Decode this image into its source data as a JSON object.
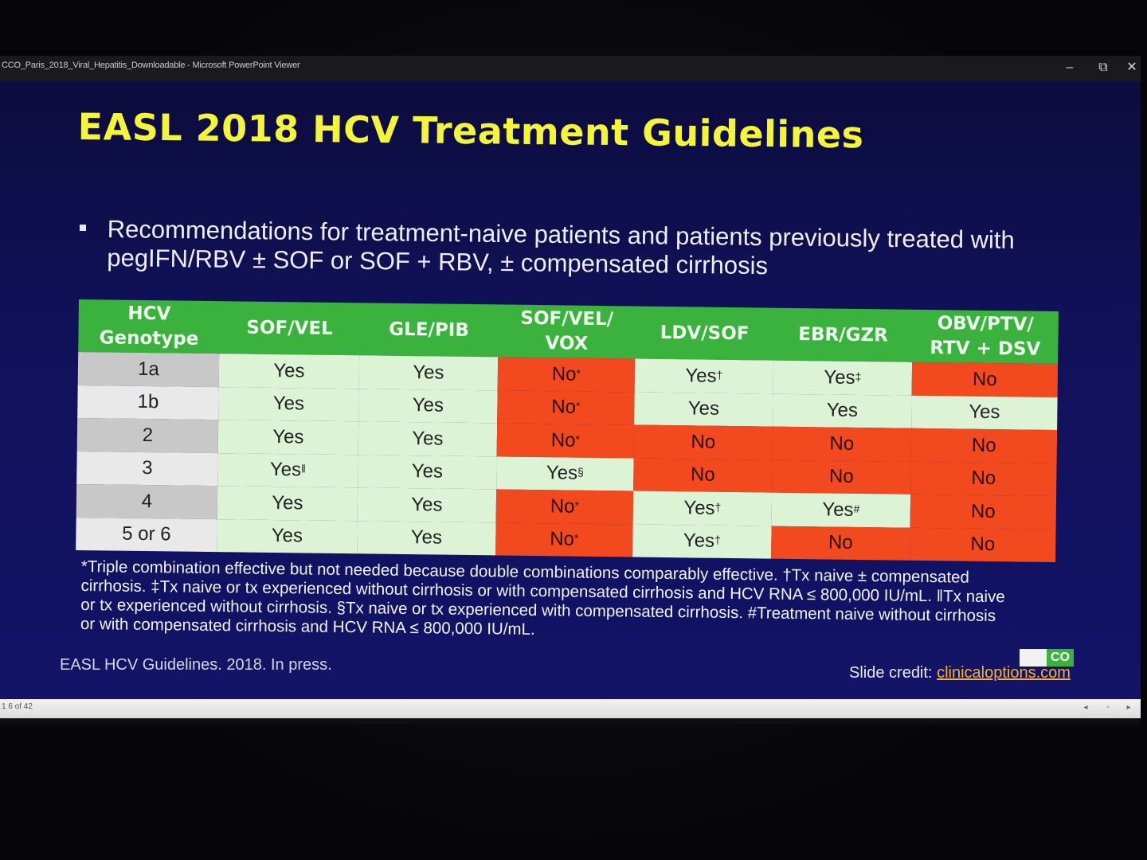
{
  "window": {
    "title": "CCO_Paris_2018_Viral_Hepatitis_Downloadable - Microsoft PowerPoint Viewer",
    "minimize": "–",
    "restore": "⧉",
    "close": "✕"
  },
  "slide": {
    "title": "EASL 2018 HCV Treatment Guidelines",
    "bullet": "Recommendations for treatment-naive patients and patients previously treated with pegIFN/RBV ± SOF or SOF + RBV, ± compensated cirrhosis",
    "table": {
      "headers": [
        "HCV Genotype",
        "SOF/VEL",
        "GLE/PIB",
        "SOF/VEL/ VOX",
        "LDV/SOF",
        "EBR/GZR",
        "OBV/PTV/ RTV + DSV"
      ],
      "rows": [
        {
          "genotype": "1a",
          "cells": [
            [
              "Yes",
              ""
            ],
            [
              "Yes",
              ""
            ],
            [
              "No",
              "*"
            ],
            [
              "Yes",
              "†"
            ],
            [
              "Yes",
              "‡"
            ],
            [
              "No",
              ""
            ]
          ]
        },
        {
          "genotype": "1b",
          "cells": [
            [
              "Yes",
              ""
            ],
            [
              "Yes",
              ""
            ],
            [
              "No",
              "*"
            ],
            [
              "Yes",
              ""
            ],
            [
              "Yes",
              ""
            ],
            [
              "Yes",
              ""
            ]
          ]
        },
        {
          "genotype": "2",
          "cells": [
            [
              "Yes",
              ""
            ],
            [
              "Yes",
              ""
            ],
            [
              "No",
              "*"
            ],
            [
              "No",
              ""
            ],
            [
              "No",
              ""
            ],
            [
              "No",
              ""
            ]
          ]
        },
        {
          "genotype": "3",
          "cells": [
            [
              "Yes",
              "ǁ"
            ],
            [
              "Yes",
              ""
            ],
            [
              "Yes",
              "§"
            ],
            [
              "No",
              ""
            ],
            [
              "No",
              ""
            ],
            [
              "No",
              ""
            ]
          ]
        },
        {
          "genotype": "4",
          "cells": [
            [
              "Yes",
              ""
            ],
            [
              "Yes",
              ""
            ],
            [
              "No",
              "*"
            ],
            [
              "Yes",
              "†"
            ],
            [
              "Yes",
              "#"
            ],
            [
              "No",
              ""
            ]
          ]
        },
        {
          "genotype": "5 or 6",
          "cells": [
            [
              "Yes",
              ""
            ],
            [
              "Yes",
              ""
            ],
            [
              "No",
              "*"
            ],
            [
              "Yes",
              "†"
            ],
            [
              "No",
              ""
            ],
            [
              "No",
              ""
            ]
          ]
        }
      ]
    },
    "footnote": "*Triple combination effective but not needed because double combinations comparably effective. †Tx naive ± compensated cirrhosis. ‡Tx naive or tx experienced without cirrhosis or with compensated cirrhosis and HCV RNA ≤ 800,000 IU/mL. ǁTx naive or tx experienced without cirrhosis. §Tx naive or tx experienced with compensated cirrhosis. #Treatment naive without cirrhosis or with compensated cirrhosis and HCV RNA ≤ 800,000 IU/mL.",
    "source": "EASL HCV Guidelines. 2018. In press.",
    "credit_label": "Slide credit:",
    "credit_link": "clinicaloptions.com",
    "logo_text": "CO"
  },
  "statusbar": {
    "slide_count": "1 6 of 42"
  },
  "colors": {
    "title": "#f4f53a",
    "header_green": "#3cb23e",
    "yes_bg": "#ddf3d6",
    "no_bg": "#f24a1e",
    "link": "#f2b23a"
  }
}
